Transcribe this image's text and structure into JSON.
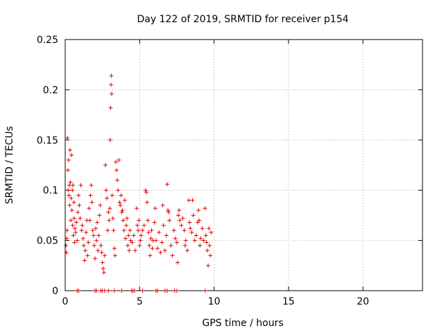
{
  "chart_data": {
    "type": "scatter",
    "title": "Day 122 of 2019, SRMTID for receiver p154",
    "xlabel": "GPS time / hours",
    "ylabel": "SRMTID / TECUs",
    "xlim": [
      0,
      24
    ],
    "ylim": [
      0,
      0.25
    ],
    "x_ticks": [
      0,
      5,
      10,
      15,
      20
    ],
    "x_tick_labels": [
      "0",
      "5",
      "10",
      "15",
      "20"
    ],
    "y_ticks": [
      0,
      0.05,
      0.1,
      0.15,
      0.2,
      0.25
    ],
    "y_tick_labels": [
      "0",
      "0.05",
      "0.1",
      "0.15",
      "0.2",
      "0.25"
    ],
    "grid": true,
    "marker": "+",
    "color": "#e00000",
    "series": [
      {
        "name": "SRMTID",
        "points": [
          [
            0.05,
            0.045
          ],
          [
            0.08,
            0.038
          ],
          [
            0.1,
            0.052
          ],
          [
            0.12,
            0.06
          ],
          [
            0.15,
            0.152
          ],
          [
            0.18,
            0.12
          ],
          [
            0.2,
            0.1
          ],
          [
            0.22,
            0.13
          ],
          [
            0.25,
            0.095
          ],
          [
            0.28,
            0.105
          ],
          [
            0.3,
            0.085
          ],
          [
            0.32,
            0.14
          ],
          [
            0.35,
            0.108
          ],
          [
            0.38,
            0.07
          ],
          [
            0.4,
            0.092
          ],
          [
            0.42,
            0.135
          ],
          [
            0.45,
            0.08
          ],
          [
            0.48,
            0.1
          ],
          [
            0.5,
            0.065
          ],
          [
            0.52,
            0.105
          ],
          [
            0.55,
            0.055
          ],
          [
            0.58,
            0.088
          ],
          [
            0.6,
            0.072
          ],
          [
            0.62,
            0.048
          ],
          [
            0.65,
            0.062
          ],
          [
            0.7,
            0.058
          ],
          [
            0.75,
            0.068
          ],
          [
            0.8,
            0.05
          ],
          [
            0.85,
            0.078
          ],
          [
            0.9,
            0.095
          ],
          [
            0.95,
            0.085
          ],
          [
            1.0,
            0.072
          ],
          [
            1.05,
            0.105
          ],
          [
            1.1,
            0.06
          ],
          [
            1.15,
            0.065
          ],
          [
            1.2,
            0.052
          ],
          [
            1.25,
            0.045
          ],
          [
            1.3,
            0.03
          ],
          [
            1.35,
            0.04
          ],
          [
            1.4,
            0.058
          ],
          [
            1.45,
            0.07
          ],
          [
            1.5,
            0.035
          ],
          [
            1.55,
            0.048
          ],
          [
            1.6,
            0.082
          ],
          [
            1.65,
            0.07
          ],
          [
            1.7,
            0.095
          ],
          [
            1.75,
            0.105
          ],
          [
            1.8,
            0.088
          ],
          [
            1.85,
            0.06
          ],
          [
            1.9,
            0.055
          ],
          [
            1.95,
            0.045
          ],
          [
            2.0,
            0.032
          ],
          [
            2.05,
            0.062
          ],
          [
            2.1,
            0.05
          ],
          [
            2.15,
            0.068
          ],
          [
            2.2,
            0.04
          ],
          [
            2.25,
            0.055
          ],
          [
            2.3,
            0.075
          ],
          [
            2.35,
            0.085
          ],
          [
            2.4,
            0.045
          ],
          [
            2.45,
            0.038
          ],
          [
            2.5,
            0.028
          ],
          [
            2.55,
            0.022
          ],
          [
            2.6,
            0.018
          ],
          [
            2.65,
            0.035
          ],
          [
            2.7,
            0.125
          ],
          [
            2.75,
            0.1
          ],
          [
            2.8,
            0.092
          ],
          [
            2.85,
            0.06
          ],
          [
            2.9,
            0.078
          ],
          [
            2.95,
            0.07
          ],
          [
            3.0,
            0.082
          ],
          [
            3.02,
            0.15
          ],
          [
            3.05,
            0.182
          ],
          [
            3.08,
            0.205
          ],
          [
            3.1,
            0.214
          ],
          [
            3.12,
            0.196
          ],
          [
            3.15,
            0.095
          ],
          [
            3.2,
            0.072
          ],
          [
            3.25,
            0.06
          ],
          [
            3.3,
            0.042
          ],
          [
            3.35,
            0.035
          ],
          [
            3.4,
            0.128
          ],
          [
            3.45,
            0.12
          ],
          [
            3.5,
            0.11
          ],
          [
            3.55,
            0.1
          ],
          [
            3.6,
            0.13
          ],
          [
            3.65,
            0.088
          ],
          [
            3.7,
            0.085
          ],
          [
            3.75,
            0.095
          ],
          [
            3.8,
            0.078
          ],
          [
            3.85,
            0.08
          ],
          [
            3.9,
            0.07
          ],
          [
            3.95,
            0.06
          ],
          [
            4.0,
            0.09
          ],
          [
            4.05,
            0.052
          ],
          [
            4.1,
            0.065
          ],
          [
            4.15,
            0.072
          ],
          [
            4.2,
            0.045
          ],
          [
            4.25,
            0.055
          ],
          [
            4.3,
            0.04
          ],
          [
            4.35,
            0.06
          ],
          [
            4.4,
            0.05
          ],
          [
            4.5,
            0.048
          ],
          [
            4.6,
            0.055
          ],
          [
            4.7,
            0.04
          ],
          [
            4.8,
            0.082
          ],
          [
            4.85,
            0.065
          ],
          [
            4.9,
            0.06
          ],
          [
            4.95,
            0.07
          ],
          [
            5.0,
            0.045
          ],
          [
            5.05,
            0.05
          ],
          [
            5.1,
            0.055
          ],
          [
            5.2,
            0.06
          ],
          [
            5.3,
            0.065
          ],
          [
            5.4,
            0.1
          ],
          [
            5.45,
            0.098
          ],
          [
            5.5,
            0.088
          ],
          [
            5.55,
            0.07
          ],
          [
            5.6,
            0.058
          ],
          [
            5.65,
            0.045
          ],
          [
            5.7,
            0.035
          ],
          [
            5.75,
            0.052
          ],
          [
            5.8,
            0.06
          ],
          [
            5.85,
            0.042
          ],
          [
            5.9,
            0.05
          ],
          [
            6.0,
            0.068
          ],
          [
            6.05,
            0.082
          ],
          [
            6.1,
            0.05
          ],
          [
            6.2,
            0.042
          ],
          [
            6.3,
            0.058
          ],
          [
            6.4,
            0.038
          ],
          [
            6.5,
            0.048
          ],
          [
            6.55,
            0.085
          ],
          [
            6.6,
            0.065
          ],
          [
            6.7,
            0.04
          ],
          [
            6.8,
            0.055
          ],
          [
            6.85,
            0.106
          ],
          [
            6.9,
            0.08
          ],
          [
            6.95,
            0.078
          ],
          [
            7.0,
            0.07
          ],
          [
            7.1,
            0.045
          ],
          [
            7.2,
            0.035
          ],
          [
            7.3,
            0.06
          ],
          [
            7.4,
            0.052
          ],
          [
            7.5,
            0.048
          ],
          [
            7.55,
            0.028
          ],
          [
            7.6,
            0.075
          ],
          [
            7.65,
            0.08
          ],
          [
            7.7,
            0.07
          ],
          [
            7.8,
            0.065
          ],
          [
            7.9,
            0.072
          ],
          [
            8.0,
            0.06
          ],
          [
            8.05,
            0.045
          ],
          [
            8.1,
            0.05
          ],
          [
            8.2,
            0.04
          ],
          [
            8.3,
            0.09
          ],
          [
            8.35,
            0.068
          ],
          [
            8.4,
            0.062
          ],
          [
            8.5,
            0.058
          ],
          [
            8.55,
            0.09
          ],
          [
            8.6,
            0.075
          ],
          [
            8.7,
            0.05
          ],
          [
            8.8,
            0.055
          ],
          [
            8.9,
            0.068
          ],
          [
            8.95,
            0.08
          ],
          [
            9.0,
            0.07
          ],
          [
            9.05,
            0.045
          ],
          [
            9.1,
            0.052
          ],
          [
            9.2,
            0.062
          ],
          [
            9.3,
            0.05
          ],
          [
            9.4,
            0.082
          ],
          [
            9.45,
            0.055
          ],
          [
            9.5,
            0.048
          ],
          [
            9.55,
            0.04
          ],
          [
            9.6,
            0.025
          ],
          [
            9.65,
            0.062
          ],
          [
            9.7,
            0.045
          ],
          [
            9.75,
            0.035
          ],
          [
            9.8,
            0.058
          ]
        ]
      },
      {
        "name": "zero-level",
        "points": [
          [
            0.8,
            0
          ],
          [
            0.9,
            0
          ],
          [
            2.0,
            0
          ],
          [
            2.1,
            0
          ],
          [
            2.4,
            0
          ],
          [
            2.5,
            0
          ],
          [
            2.65,
            0
          ],
          [
            2.9,
            0
          ],
          [
            3.3,
            0
          ],
          [
            3.8,
            0
          ],
          [
            4.45,
            0
          ],
          [
            4.55,
            0
          ],
          [
            4.65,
            0
          ],
          [
            5.2,
            0
          ],
          [
            6.1,
            0
          ],
          [
            6.2,
            0
          ],
          [
            6.7,
            0
          ],
          [
            6.85,
            0
          ],
          [
            7.35,
            0
          ],
          [
            7.5,
            0
          ],
          [
            9.4,
            0
          ]
        ]
      }
    ]
  }
}
